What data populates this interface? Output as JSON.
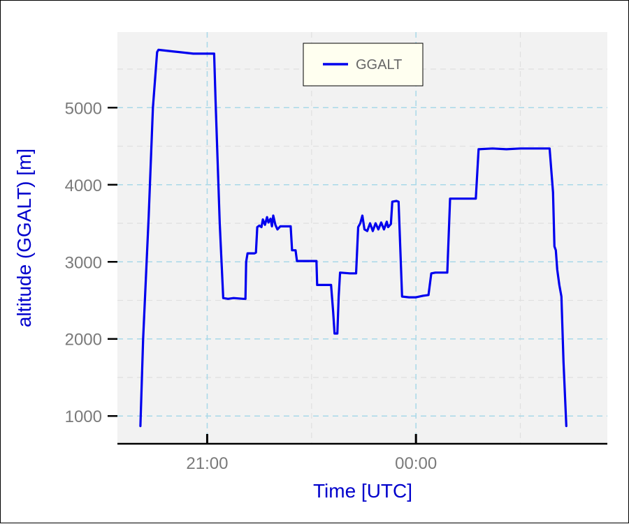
{
  "chart_data": {
    "type": "line",
    "xlabel": "Time [UTC]",
    "ylabel": "altitude (GGALT) [m]",
    "x_ticks": [
      "21:00",
      "00:00"
    ],
    "x_unit": "hours since 21:00 UTC",
    "xlim": [
      -1.29,
      5.75
    ],
    "ylim": [
      640,
      5980
    ],
    "y_ticks": [
      1000,
      2000,
      3000,
      4000,
      5000
    ],
    "grid": true,
    "legend_position": "top-center",
    "colors": {
      "line": "#0000ee",
      "grid_major": "#a8d8e8",
      "grid_minor": "#e0e0e0",
      "panel": "#f2f2f2",
      "legend_bg": "#fffff0"
    },
    "series": [
      {
        "name": "GGALT",
        "points": [
          [
            -0.96,
            870
          ],
          [
            -0.92,
            2000
          ],
          [
            -0.84,
            3600
          ],
          [
            -0.78,
            5000
          ],
          [
            -0.72,
            5720
          ],
          [
            -0.7,
            5750
          ],
          [
            -0.5,
            5730
          ],
          [
            -0.2,
            5700
          ],
          [
            0.1,
            5700
          ],
          [
            0.12,
            5100
          ],
          [
            0.18,
            3500
          ],
          [
            0.23,
            2530
          ],
          [
            0.3,
            2520
          ],
          [
            0.38,
            2530
          ],
          [
            0.52,
            2520
          ],
          [
            0.55,
            2520
          ],
          [
            0.56,
            3000
          ],
          [
            0.58,
            3110
          ],
          [
            0.68,
            3110
          ],
          [
            0.7,
            3120
          ],
          [
            0.72,
            3450
          ],
          [
            0.75,
            3470
          ],
          [
            0.78,
            3450
          ],
          [
            0.8,
            3550
          ],
          [
            0.83,
            3480
          ],
          [
            0.86,
            3580
          ],
          [
            0.88,
            3510
          ],
          [
            0.91,
            3560
          ],
          [
            0.93,
            3460
          ],
          [
            0.95,
            3600
          ],
          [
            0.98,
            3480
          ],
          [
            1.01,
            3420
          ],
          [
            1.05,
            3460
          ],
          [
            1.2,
            3460
          ],
          [
            1.22,
            3150
          ],
          [
            1.27,
            3150
          ],
          [
            1.29,
            3010
          ],
          [
            1.45,
            3010
          ],
          [
            1.57,
            3010
          ],
          [
            1.58,
            2700
          ],
          [
            1.78,
            2700
          ],
          [
            1.81,
            2350
          ],
          [
            1.83,
            2070
          ],
          [
            1.87,
            2070
          ],
          [
            1.89,
            2550
          ],
          [
            1.91,
            2860
          ],
          [
            2.05,
            2850
          ],
          [
            2.14,
            2850
          ],
          [
            2.17,
            3450
          ],
          [
            2.2,
            3500
          ],
          [
            2.23,
            3600
          ],
          [
            2.26,
            3420
          ],
          [
            2.3,
            3400
          ],
          [
            2.34,
            3500
          ],
          [
            2.38,
            3400
          ],
          [
            2.42,
            3500
          ],
          [
            2.46,
            3420
          ],
          [
            2.5,
            3510
          ],
          [
            2.54,
            3420
          ],
          [
            2.58,
            3520
          ],
          [
            2.6,
            3450
          ],
          [
            2.64,
            3490
          ],
          [
            2.66,
            3780
          ],
          [
            2.72,
            3790
          ],
          [
            2.75,
            3780
          ],
          [
            2.8,
            2550
          ],
          [
            2.9,
            2540
          ],
          [
            3.0,
            2540
          ],
          [
            3.1,
            2560
          ],
          [
            3.18,
            2570
          ],
          [
            3.22,
            2850
          ],
          [
            3.28,
            2860
          ],
          [
            3.45,
            2860
          ],
          [
            3.49,
            3820
          ],
          [
            3.55,
            3820
          ],
          [
            3.7,
            3820
          ],
          [
            3.86,
            3820
          ],
          [
            3.9,
            4460
          ],
          [
            4.1,
            4470
          ],
          [
            4.3,
            4460
          ],
          [
            4.5,
            4470
          ],
          [
            4.7,
            4470
          ],
          [
            4.92,
            4470
          ],
          [
            4.97,
            3900
          ],
          [
            4.99,
            3200
          ],
          [
            5.01,
            3150
          ],
          [
            5.03,
            2900
          ],
          [
            5.06,
            2700
          ],
          [
            5.09,
            2550
          ],
          [
            5.12,
            1700
          ],
          [
            5.16,
            870
          ]
        ]
      }
    ]
  }
}
